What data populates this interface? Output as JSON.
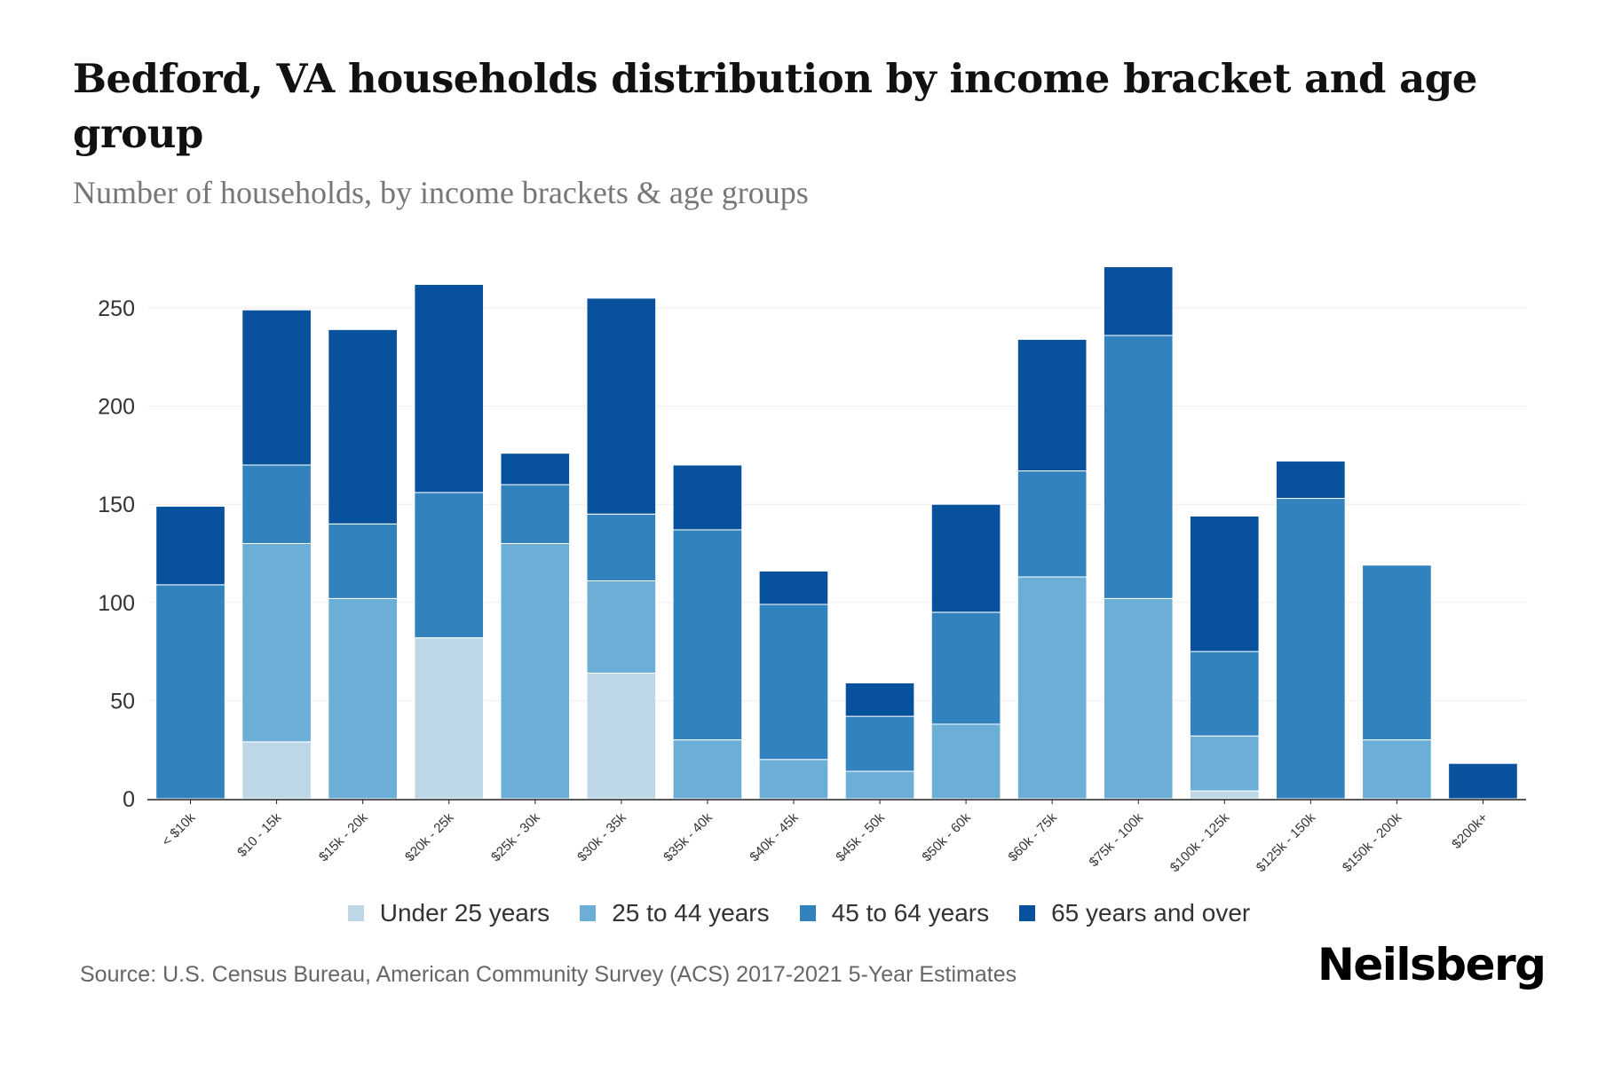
{
  "header": {
    "title": "Bedford, VA households distribution by income bracket and age group",
    "subtitle": "Number of households, by income brackets & age groups"
  },
  "footer": {
    "source": "Source: U.S. Census Bureau, American Community Survey (ACS) 2017-2021 5-Year Estimates",
    "logo": "Neilsberg"
  },
  "chart_data": {
    "type": "bar",
    "stacked": true,
    "title": "Bedford, VA households distribution by income bracket and age group",
    "subtitle": "Number of households, by income brackets & age groups",
    "xlabel": "",
    "ylabel": "",
    "ylim": [
      0,
      280
    ],
    "yticks": [
      0,
      50,
      100,
      150,
      200,
      250
    ],
    "grid": true,
    "legend_position": "bottom",
    "categories": [
      "< $10k",
      "$10 - 15k",
      "$15k - 20k",
      "$20k - 25k",
      "$25k - 30k",
      "$30k - 35k",
      "$35k - 40k",
      "$40k - 45k",
      "$45k - 50k",
      "$50k - 60k",
      "$60k - 75k",
      "$75k - 100k",
      "$100k - 125k",
      "$125k - 150k",
      "$150k - 200k",
      "$200k+"
    ],
    "series": [
      {
        "name": "Under 25 years",
        "color": "#bdd7e7",
        "values": [
          0,
          29,
          0,
          82,
          0,
          64,
          0,
          0,
          0,
          0,
          0,
          0,
          4,
          0,
          0,
          0
        ]
      },
      {
        "name": "25 to 44 years",
        "color": "#6baed6",
        "values": [
          0,
          101,
          102,
          0,
          130,
          47,
          30,
          20,
          14,
          38,
          113,
          102,
          28,
          0,
          30,
          0
        ]
      },
      {
        "name": "45 to 64 years",
        "color": "#3182bd",
        "values": [
          109,
          40,
          38,
          74,
          30,
          34,
          107,
          79,
          28,
          57,
          54,
          134,
          43,
          153,
          89,
          0
        ]
      },
      {
        "name": "65 years and over",
        "color": "#08519c",
        "values": [
          40,
          79,
          99,
          106,
          16,
          110,
          33,
          17,
          17,
          55,
          67,
          35,
          69,
          19,
          0,
          18
        ]
      }
    ]
  }
}
